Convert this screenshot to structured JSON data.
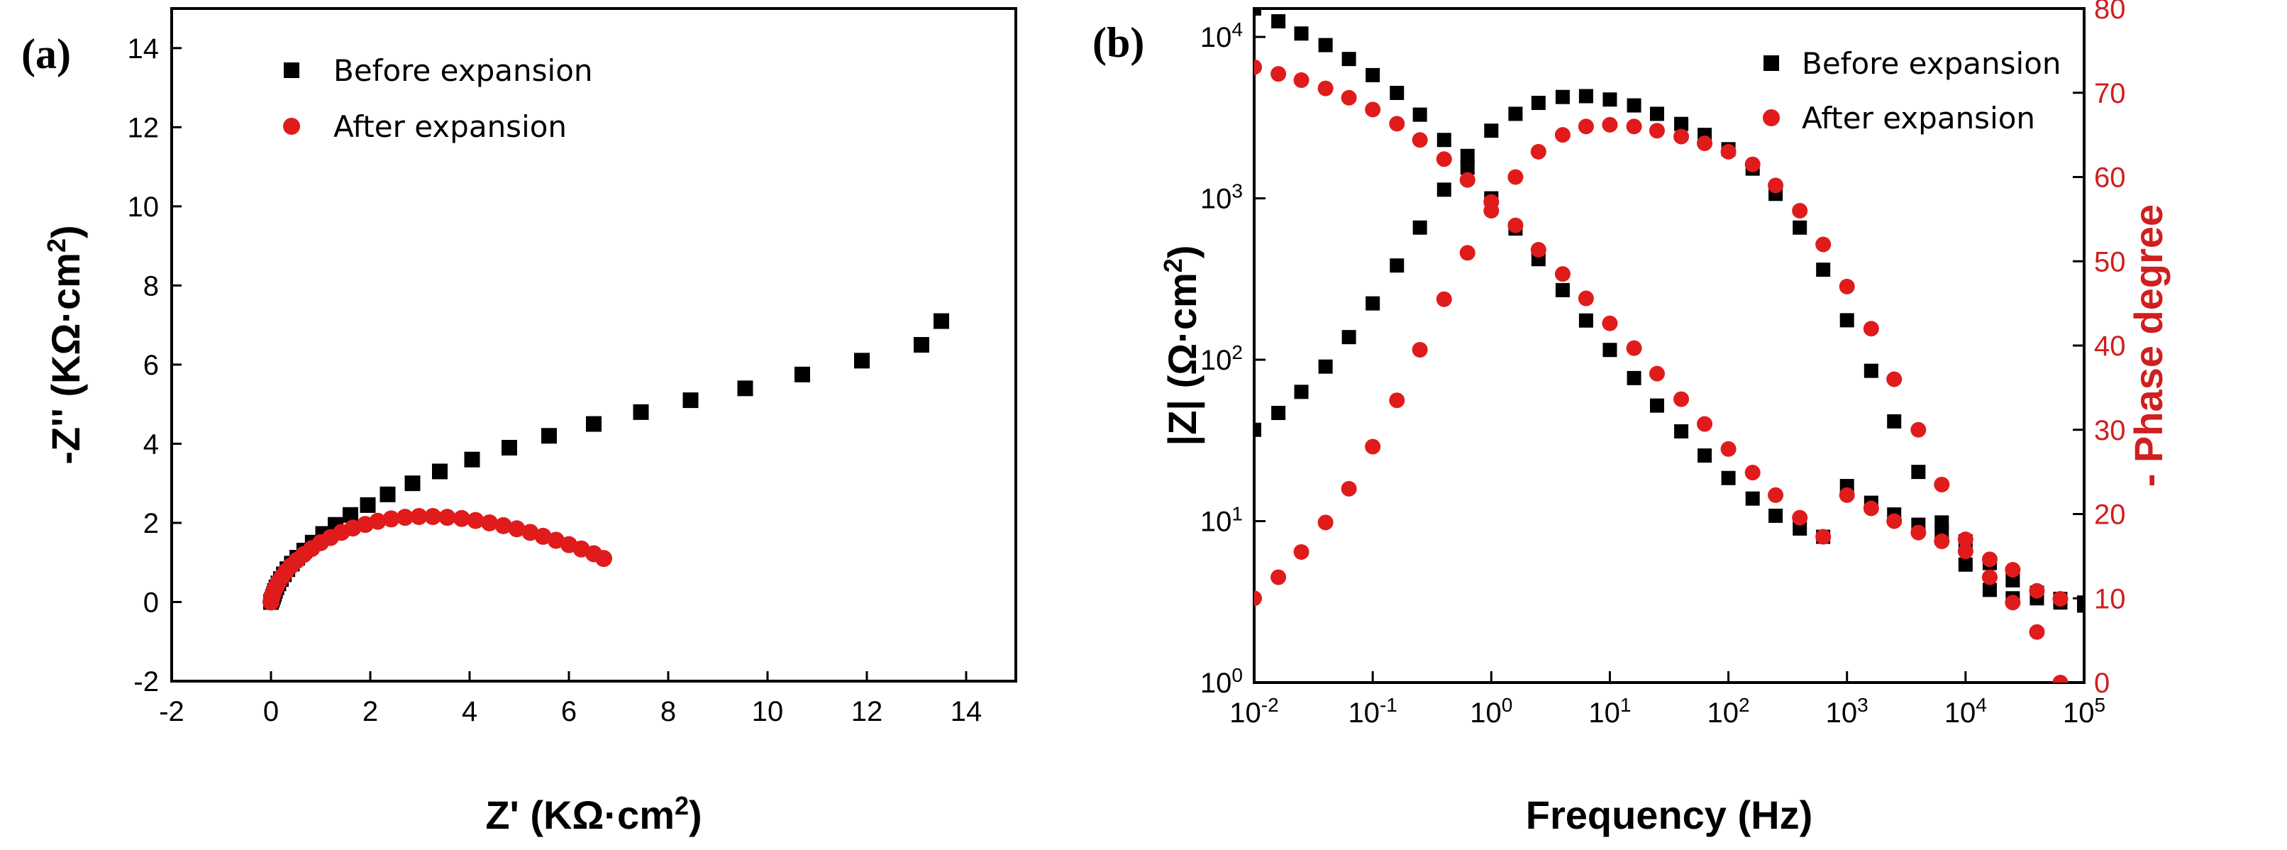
{
  "colors": {
    "series_black": "#000000",
    "series_red": "#e01b1b",
    "right_axis": "#d11e1e"
  },
  "chart_data": [
    {
      "panel": "(a)",
      "type": "scatter",
      "xlabel": "Z' (KΩ·cm²)",
      "ylabel": "-Z'' (KΩ·cm²)",
      "xlim": [
        -2,
        15
      ],
      "ylim": [
        -2,
        15
      ],
      "xticks": [
        -2,
        0,
        2,
        4,
        6,
        8,
        10,
        12,
        14
      ],
      "yticks": [
        -2,
        0,
        2,
        4,
        6,
        8,
        10,
        12,
        14
      ],
      "legend": {
        "position": "top-left",
        "entries": [
          "Before expansion",
          "After expansion"
        ]
      },
      "series": [
        {
          "name": "Before expansion",
          "marker": "square",
          "color": "#000000",
          "x": [
            0.0,
            0.02,
            0.04,
            0.06,
            0.08,
            0.11,
            0.15,
            0.2,
            0.26,
            0.33,
            0.42,
            0.53,
            0.67,
            0.84,
            1.05,
            1.3,
            1.6,
            1.95,
            2.35,
            2.85,
            3.4,
            4.05,
            4.8,
            5.6,
            6.5,
            7.45,
            8.45,
            9.55,
            10.7,
            11.9,
            13.1,
            13.5
          ],
          "y": [
            0.0,
            0.06,
            0.13,
            0.2,
            0.28,
            0.37,
            0.47,
            0.58,
            0.7,
            0.83,
            0.97,
            1.12,
            1.3,
            1.5,
            1.72,
            1.95,
            2.2,
            2.45,
            2.72,
            3.0,
            3.3,
            3.6,
            3.9,
            4.2,
            4.5,
            4.8,
            5.1,
            5.4,
            5.75,
            6.1,
            6.5,
            7.1
          ]
        },
        {
          "name": "After expansion",
          "marker": "circle",
          "color": "#e01b1b",
          "x": [
            0.0,
            0.01,
            0.03,
            0.06,
            0.1,
            0.15,
            0.22,
            0.3,
            0.4,
            0.52,
            0.66,
            0.82,
            1.0,
            1.2,
            1.42,
            1.65,
            1.9,
            2.15,
            2.42,
            2.7,
            2.98,
            3.26,
            3.55,
            3.84,
            4.12,
            4.4,
            4.68,
            4.95,
            5.22,
            5.48,
            5.74,
            6.0,
            6.25,
            6.5,
            6.7
          ],
          "y": [
            0.0,
            0.08,
            0.17,
            0.27,
            0.38,
            0.5,
            0.63,
            0.77,
            0.91,
            1.05,
            1.2,
            1.35,
            1.5,
            1.63,
            1.76,
            1.87,
            1.96,
            2.04,
            2.1,
            2.14,
            2.16,
            2.16,
            2.14,
            2.11,
            2.06,
            2.0,
            1.93,
            1.85,
            1.76,
            1.66,
            1.56,
            1.45,
            1.34,
            1.22,
            1.1
          ]
        }
      ]
    },
    {
      "panel": "(b)",
      "type": "scatter",
      "xlabel": "Frequency (Hz)",
      "ylabel": "|Z| (Ω·cm²)",
      "ylabel_right": "- Phase degree",
      "xscale": "log",
      "yscale": "log",
      "xlim": [
        0.01,
        100000
      ],
      "ylim": [
        1,
        15000
      ],
      "ylim_right": [
        0,
        80
      ],
      "xticks": [
        "10^-2",
        "10^-1",
        "10^0",
        "10^1",
        "10^2",
        "10^3",
        "10^4",
        "10^5"
      ],
      "yticks": [
        "10^0",
        "10^1",
        "10^2",
        "10^3",
        "10^4"
      ],
      "yticks_right": [
        0,
        10,
        20,
        30,
        40,
        50,
        60,
        70,
        80
      ],
      "legend": {
        "position": "top-right",
        "entries": [
          "Before expansion",
          "After expansion"
        ]
      },
      "series": [
        {
          "name": "Before expansion |Z|",
          "axis": "left",
          "marker": "square",
          "color": "#000000",
          "x": [
            0.01,
            0.016,
            0.025,
            0.04,
            0.063,
            0.1,
            0.16,
            0.25,
            0.4,
            0.63,
            1,
            1.6,
            2.5,
            4,
            6.3,
            10,
            16,
            25,
            40,
            63,
            100,
            160,
            250,
            400,
            630,
            1000,
            1600,
            2500,
            4000,
            6300,
            10000,
            16000,
            25000,
            40000,
            63000,
            100000
          ],
          "y": [
            15000,
            12500,
            10500,
            8900,
            7300,
            5800,
            4500,
            3300,
            2300,
            1550,
            1000,
            650,
            420,
            270,
            175,
            115,
            77,
            52,
            36,
            25.5,
            18.5,
            13.8,
            10.8,
            9.0,
            8.0,
            16.5,
            13,
            11,
            9.5,
            8.5,
            7.5,
            5.5,
            4.3,
            3.6,
            3.3,
            3.0
          ]
        },
        {
          "name": "Before expansion phase",
          "axis": "right",
          "marker": "square",
          "color": "#000000",
          "x": [
            0.01,
            0.016,
            0.025,
            0.04,
            0.063,
            0.1,
            0.16,
            0.25,
            0.4,
            0.63,
            1,
            1.6,
            2.5,
            4,
            6.3,
            10,
            16,
            25,
            40,
            63,
            100,
            160,
            250,
            400,
            630,
            1000,
            1600,
            2500,
            4000,
            6300,
            10000,
            16000,
            25000,
            40000,
            63000,
            100000
          ],
          "y": [
            30,
            32,
            34.5,
            37.5,
            41,
            45,
            49.5,
            54,
            58.5,
            62.5,
            65.5,
            67.5,
            68.8,
            69.5,
            69.6,
            69.2,
            68.5,
            67.5,
            66.3,
            65,
            63.3,
            61,
            58,
            54,
            49,
            43,
            37,
            31,
            25,
            19,
            14,
            11,
            10,
            10,
            9.5,
            9.5
          ]
        },
        {
          "name": "After expansion |Z|",
          "axis": "left",
          "marker": "circle",
          "color": "#e01b1b",
          "x": [
            0.01,
            0.016,
            0.025,
            0.04,
            0.063,
            0.1,
            0.16,
            0.25,
            0.4,
            0.63,
            1,
            1.6,
            2.5,
            4,
            6.3,
            10,
            16,
            25,
            40,
            63,
            100,
            160,
            250,
            400,
            630,
            1000,
            1600,
            2500,
            4000,
            6300,
            10000,
            16000,
            25000,
            40000,
            63000
          ],
          "y": [
            6500,
            5900,
            5400,
            4800,
            4200,
            3550,
            2900,
            2300,
            1750,
            1300,
            950,
            680,
            480,
            340,
            240,
            168,
            118,
            82,
            57,
            40,
            28,
            20,
            14.5,
            10.5,
            8.0,
            14.5,
            12.0,
            10.0,
            8.5,
            7.5,
            6.5,
            5.8,
            5.0,
            3.7,
            3.3
          ]
        },
        {
          "name": "After expansion phase",
          "axis": "right",
          "marker": "circle",
          "color": "#e01b1b",
          "x": [
            0.01,
            0.016,
            0.025,
            0.04,
            0.063,
            0.1,
            0.16,
            0.25,
            0.4,
            0.63,
            1,
            1.6,
            2.5,
            4,
            6.3,
            10,
            16,
            25,
            40,
            63,
            100,
            160,
            250,
            400,
            630,
            1000,
            1600,
            2500,
            4000,
            6300,
            10000,
            16000,
            25000,
            40000,
            63000
          ],
          "y": [
            10,
            12.5,
            15.5,
            19,
            23,
            28,
            33.5,
            39.5,
            45.5,
            51,
            56,
            60,
            63,
            65,
            66,
            66.2,
            66,
            65.5,
            64.8,
            64,
            63,
            61.5,
            59,
            56,
            52,
            47,
            42,
            36,
            30,
            23.5,
            17,
            12.5,
            9.5,
            6,
            0
          ]
        }
      ]
    }
  ]
}
